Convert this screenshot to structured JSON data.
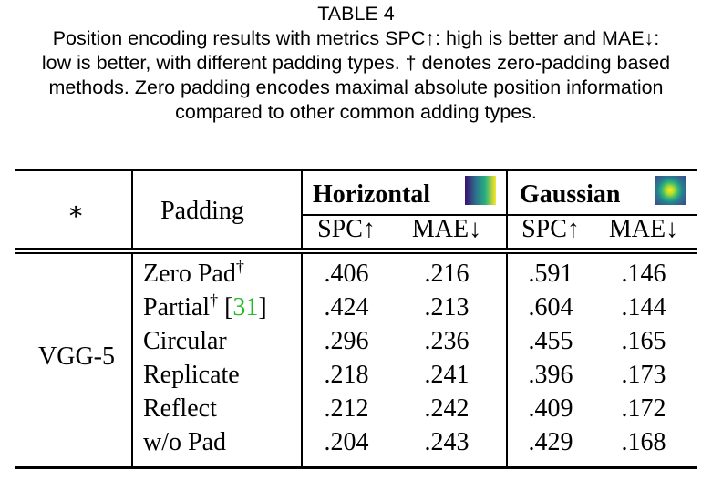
{
  "caption": {
    "label": "TABLE 4",
    "lines": [
      "Position encoding results with metrics SPC↑: high is better and MAE↓:",
      "low is better, with different padding types. † denotes zero-padding based",
      "methods. Zero padding encodes maximal absolute position information",
      "compared to other common adding types."
    ]
  },
  "table": {
    "corner_symbol": "∗",
    "padding_header": "Padding",
    "groups": [
      {
        "name": "Horizontal",
        "icon": "horizontal-gradient-icon",
        "metrics": [
          "SPC↑",
          "MAE↓"
        ]
      },
      {
        "name": "Gaussian",
        "icon": "gaussian-map-icon",
        "metrics": [
          "SPC↑",
          "MAE↓"
        ]
      }
    ],
    "model": "VGG-5",
    "rows": [
      {
        "padding": "Zero Pad",
        "sup": "†",
        "cite": "",
        "values": [
          ".406",
          ".216",
          ".591",
          ".146"
        ]
      },
      {
        "padding": "Partial",
        "sup": "†",
        "cite": "31",
        "values": [
          ".424",
          ".213",
          ".604",
          ".144"
        ]
      },
      {
        "padding": "Circular",
        "sup": "",
        "cite": "",
        "values": [
          ".296",
          ".236",
          ".455",
          ".165"
        ]
      },
      {
        "padding": "Replicate",
        "sup": "",
        "cite": "",
        "values": [
          ".218",
          ".241",
          ".396",
          ".173"
        ]
      },
      {
        "padding": "Reflect",
        "sup": "",
        "cite": "",
        "values": [
          ".212",
          ".242",
          ".409",
          ".172"
        ]
      },
      {
        "padding": "w/o Pad",
        "sup": "",
        "cite": "",
        "values": [
          ".204",
          ".243",
          ".429",
          ".168"
        ]
      }
    ]
  },
  "colors": {
    "citation": "#22bb22"
  }
}
